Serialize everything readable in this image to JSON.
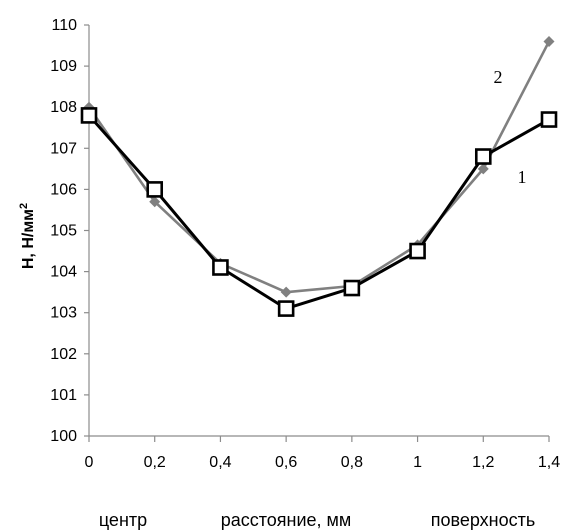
{
  "chart_data": {
    "type": "line",
    "ylabel": "Н, Н/мм²",
    "ylabel_parts": {
      "main": "Н, Н/мм",
      "sup": "2"
    },
    "x": [
      0,
      0.2,
      0.4,
      0.6,
      0.8,
      1.0,
      1.2,
      1.4
    ],
    "x_tick_labels": [
      "0",
      "0,2",
      "0,4",
      "0,6",
      "0,8",
      "1",
      "1,2",
      "1,4"
    ],
    "y_ticks": [
      100,
      101,
      102,
      103,
      104,
      105,
      106,
      107,
      108,
      109,
      110
    ],
    "y_tick_labels": [
      "100",
      "101",
      "102",
      "103",
      "104",
      "105",
      "106",
      "107",
      "108",
      "109",
      "110"
    ],
    "xlim": [
      0,
      1.4
    ],
    "ylim": [
      100,
      110
    ],
    "grid": false,
    "series": [
      {
        "name": "1",
        "marker": "open-square",
        "color": "#000000",
        "values": [
          107.8,
          106.0,
          104.1,
          103.1,
          103.6,
          104.5,
          106.8,
          107.7
        ]
      },
      {
        "name": "2",
        "marker": "diamond",
        "color": "#808080",
        "values": [
          108.0,
          105.7,
          104.2,
          103.5,
          103.65,
          104.65,
          106.5,
          109.6
        ]
      }
    ],
    "bottom_labels": {
      "left": "центр",
      "center": "расстояние, мм",
      "right": "поверхность"
    }
  }
}
